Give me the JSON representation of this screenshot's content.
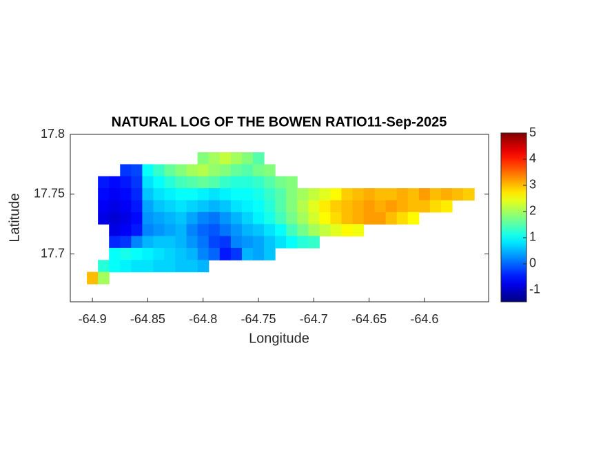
{
  "chart_data": {
    "type": "map",
    "title": "NATURAL LOG OF THE BOWEN RATIO11-Sep-2025",
    "xlabel": "Longitude",
    "ylabel": "Latitude",
    "colormap": "jet",
    "xlim": [
      -64.92,
      -64.542
    ],
    "ylim": [
      17.66,
      17.8
    ],
    "xticks": [
      -64.9,
      -64.85,
      -64.8,
      -64.75,
      -64.7,
      -64.65,
      -64.6
    ],
    "yticks": [
      17.7,
      17.75,
      17.8
    ],
    "clim": [
      -1.45,
      5
    ],
    "cticks": [
      -1,
      0,
      1,
      2,
      3,
      4,
      5
    ],
    "x": [
      -64.9,
      -64.89,
      -64.88,
      -64.87,
      -64.86,
      -64.85,
      -64.84,
      -64.83,
      -64.82,
      -64.81,
      -64.8,
      -64.79,
      -64.78,
      -64.77,
      -64.76,
      -64.75,
      -64.74,
      -64.73,
      -64.72,
      -64.71,
      -64.7,
      -64.69,
      -64.68,
      -64.67,
      -64.66,
      -64.65,
      -64.64,
      -64.63,
      -64.62,
      -64.61,
      -64.6,
      -64.59,
      -64.58,
      -64.57,
      -64.56
    ],
    "y": [
      17.78,
      17.77,
      17.76,
      17.75,
      17.74,
      17.73,
      17.72,
      17.71,
      17.7,
      17.69,
      17.68
    ],
    "z": [
      [
        null,
        null,
        null,
        null,
        null,
        null,
        null,
        null,
        null,
        null,
        1.8,
        2,
        2.2,
        2,
        1.8,
        1.5,
        null,
        null,
        null,
        null,
        null,
        null,
        null,
        null,
        null,
        null,
        null,
        null,
        null,
        null,
        null,
        null,
        null,
        null,
        null
      ],
      [
        null,
        null,
        null,
        -0.3,
        -0.2,
        1.0,
        1.3,
        1.6,
        1.8,
        2,
        2.1,
        1.9,
        1.8,
        1.6,
        1.5,
        1.7,
        1.8,
        null,
        null,
        null,
        null,
        null,
        null,
        null,
        null,
        null,
        null,
        null,
        null,
        null,
        null,
        null,
        null,
        null,
        null
      ],
      [
        null,
        -0.5,
        -0.6,
        -0.5,
        -0.3,
        0.8,
        1.0,
        1.2,
        1.4,
        1.5,
        1.6,
        1.5,
        1.3,
        1.2,
        1.2,
        1.3,
        1.5,
        1.7,
        1.8,
        null,
        null,
        null,
        null,
        null,
        null,
        null,
        null,
        null,
        null,
        null,
        null,
        null,
        null,
        null,
        null
      ],
      [
        null,
        -0.6,
        -0.7,
        -0.6,
        -0.4,
        0.6,
        0.8,
        0.9,
        1.0,
        1.0,
        0.9,
        0.8,
        0.9,
        1.0,
        1.0,
        1.1,
        1.3,
        1.5,
        1.8,
        2.0,
        2.2,
        2.4,
        2.6,
        2.9,
        3.0,
        3.1,
        3.0,
        3.0,
        3.1,
        3.0,
        3.2,
        3.0,
        3.1,
        3.0,
        2.9
      ],
      [
        null,
        -0.7,
        -0.8,
        -0.7,
        -0.5,
        0.4,
        0.6,
        0.7,
        0.8,
        0.7,
        0.6,
        0.5,
        0.6,
        0.8,
        0.9,
        1.0,
        1.2,
        1.5,
        1.8,
        2.1,
        2.4,
        2.7,
        2.9,
        3.0,
        3.1,
        3.2,
        3.1,
        3.2,
        3.1,
        3.0,
        3.0,
        2.8,
        2.7,
        null,
        null
      ],
      [
        null,
        -0.8,
        -0.9,
        -0.8,
        -0.6,
        0.3,
        0.4,
        0.5,
        0.6,
        0.4,
        0.2,
        0.1,
        0.3,
        0.5,
        0.7,
        0.9,
        1.1,
        1.4,
        1.7,
        2.0,
        2.3,
        2.6,
        2.8,
        3.0,
        3.1,
        3.2,
        3.2,
        3.0,
        2.8,
        2.6,
        null,
        null,
        null,
        null,
        null
      ],
      [
        null,
        null,
        -0.8,
        -0.7,
        -0.5,
        0.2,
        0.3,
        0.4,
        0.5,
        0.2,
        0,
        -0.1,
        0.1,
        0.3,
        0.5,
        0.6,
        0.8,
        1.0,
        1.4,
        1.7,
        2.0,
        2.2,
        2.4,
        2.6,
        2.5,
        null,
        null,
        null,
        null,
        null,
        null,
        null,
        null,
        null,
        null
      ],
      [
        null,
        null,
        -0.4,
        -0.3,
        0.2,
        0.5,
        0.6,
        0.6,
        0.5,
        0.3,
        0.1,
        -0.2,
        -0.3,
        0.2,
        0.3,
        0.4,
        0.6,
        0.8,
        1.0,
        1.2,
        1.3,
        null,
        null,
        null,
        null,
        null,
        null,
        null,
        null,
        null,
        null,
        null,
        null,
        null,
        null
      ],
      [
        null,
        null,
        1.0,
        1.1,
        1.0,
        0.9,
        0.8,
        0.7,
        0.6,
        0.5,
        0.2,
        0.0,
        -0.5,
        -0.3,
        0.5,
        0.4,
        0.6,
        null,
        null,
        null,
        null,
        null,
        null,
        null,
        null,
        null,
        null,
        null,
        null,
        null,
        null,
        null,
        null,
        null,
        null
      ],
      [
        null,
        1.2,
        1.0,
        0.9,
        0.8,
        0.8,
        0.7,
        0.7,
        0.6,
        0.6,
        0.5,
        null,
        null,
        null,
        null,
        null,
        null,
        null,
        null,
        null,
        null,
        null,
        null,
        null,
        null,
        null,
        null,
        null,
        null,
        null,
        null,
        null,
        null,
        null,
        null
      ],
      [
        3.0,
        2.0,
        null,
        null,
        null,
        null,
        null,
        null,
        null,
        null,
        null,
        null,
        null,
        null,
        null,
        null,
        null,
        null,
        null,
        null,
        null,
        null,
        null,
        null,
        null,
        null,
        null,
        null,
        null,
        null,
        null,
        null,
        null,
        null,
        null
      ]
    ]
  }
}
